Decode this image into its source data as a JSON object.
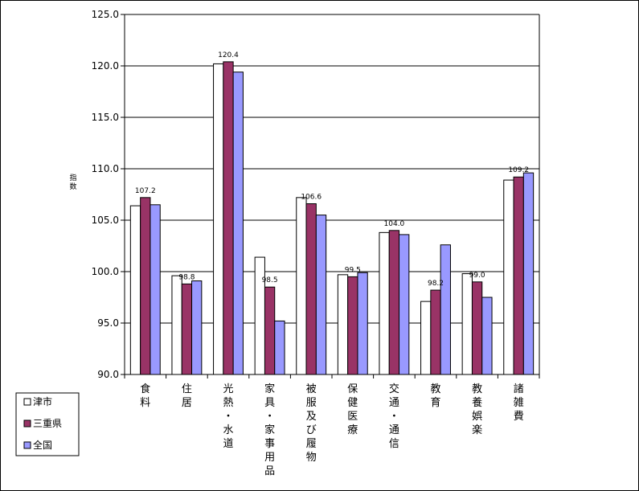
{
  "chart_data": {
    "type": "bar",
    "ylabel": "指数",
    "ylim": [
      90.0,
      125.0
    ],
    "yticks": [
      "125.0",
      "120.0",
      "115.0",
      "110.0",
      "105.0",
      "100.0",
      "95.0",
      "90.0"
    ],
    "ytick_values": [
      125,
      120,
      115,
      110,
      105,
      100,
      95,
      90
    ],
    "grid": true,
    "legend_position": "bottom-left",
    "categories": [
      "食料",
      "住居",
      "光熱・水道",
      "家具・家事用品",
      "被服及び履物",
      "保健医療",
      "交通・通信",
      "教育",
      "教養娯楽",
      "諸雑費"
    ],
    "series": [
      {
        "name": "津市",
        "color": "#ffffff",
        "values": [
          106.4,
          99.6,
          120.2,
          101.4,
          107.2,
          99.7,
          103.8,
          97.1,
          99.8,
          108.9
        ]
      },
      {
        "name": "三重県",
        "color": "#993366",
        "values": [
          107.2,
          98.8,
          120.4,
          98.5,
          106.6,
          99.5,
          104.0,
          98.2,
          99.0,
          109.2
        ]
      },
      {
        "name": "全国",
        "color": "#9999ff",
        "values": [
          106.5,
          99.1,
          119.4,
          95.2,
          105.5,
          99.9,
          103.6,
          102.6,
          97.5,
          109.6
        ]
      }
    ],
    "data_labels": [
      "107.2",
      "98.8",
      "120.4",
      "98.5",
      "106.6",
      "99.5",
      "104.0",
      "98.2",
      "99.0",
      "109.2"
    ],
    "data_label_series": 1
  }
}
